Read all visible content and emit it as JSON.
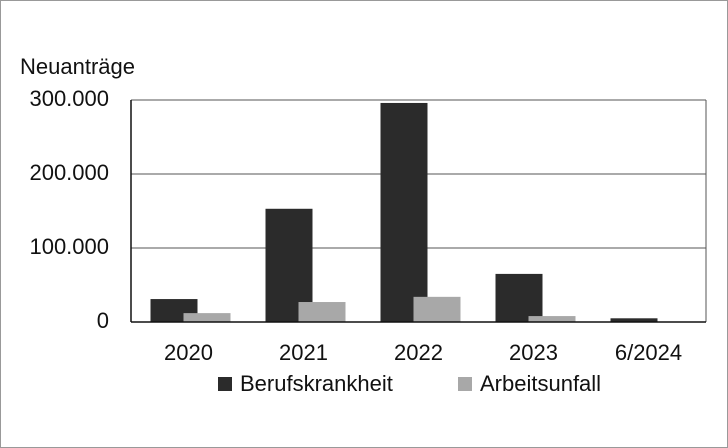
{
  "chart_data": {
    "type": "bar",
    "y_label": "Neuanträge",
    "categories": [
      "2020",
      "2021",
      "2022",
      "2023",
      "6/2024"
    ],
    "series": [
      {
        "name": "Berufskrankheit",
        "color": "#2b2b2b",
        "values": [
          31000,
          153000,
          296000,
          65000,
          5000
        ]
      },
      {
        "name": "Arbeitsunfall",
        "color": "#a8a8a8",
        "values": [
          12000,
          27000,
          34000,
          8000,
          null
        ]
      }
    ],
    "ylim": [
      0,
      300000
    ],
    "yticks": [
      0,
      {
        "value": 100000,
        "label": "100.000"
      },
      {
        "value": 200000,
        "label": "200.000"
      },
      {
        "value": 300000,
        "label": "300.000"
      }
    ],
    "grid": true,
    "legend": "bottom"
  }
}
